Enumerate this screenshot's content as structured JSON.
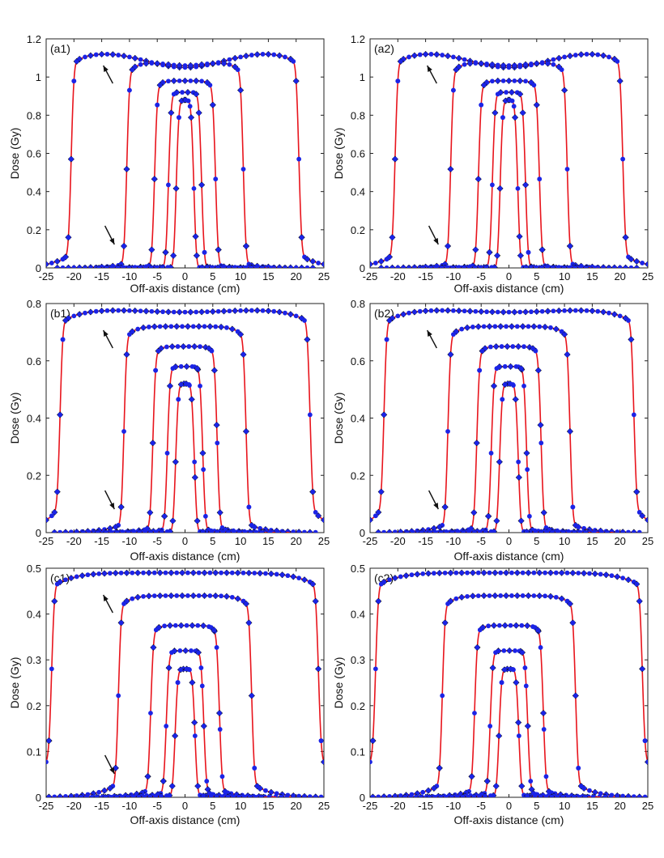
{
  "chart_data": [
    {
      "panel": "(a1)",
      "type": "line",
      "xlabel": "Off-axis distance (cm)",
      "ylabel": "Dose (Gy)",
      "xlim": [
        -25,
        25
      ],
      "ylim": [
        0,
        1.2
      ],
      "xticks": [
        "-25",
        "-20",
        "-15",
        "-10",
        "-5",
        "0",
        "5",
        "10",
        "15",
        "20",
        "25"
      ],
      "yticks": [
        "0",
        "0.2",
        "0.4",
        "0.6",
        "0.8",
        "1",
        "1.2"
      ],
      "grid": false,
      "markers_open_diamond": true,
      "arrows": true,
      "profiles": [
        {
          "half_width": 20.5,
          "max": 1.14,
          "dip": 0.09,
          "tail": 0.07
        },
        {
          "half_width": 10.5,
          "max": 1.08,
          "dip": 0.02,
          "tail": 0.02
        },
        {
          "half_width": 5.5,
          "max": 0.98,
          "dip": 0.0,
          "tail": 0.01
        },
        {
          "half_width": 3.0,
          "max": 0.92,
          "dip": 0.0,
          "tail": 0.005
        },
        {
          "half_width": 1.6,
          "max": 0.88,
          "dip": 0.0,
          "tail": 0.005
        }
      ]
    },
    {
      "panel": "(a2)",
      "type": "line",
      "xlabel": "Off-axis distance (cm)",
      "ylabel": "Dose (Gy)",
      "xlim": [
        -25,
        25
      ],
      "ylim": [
        0,
        1.2
      ],
      "xticks": [
        "-25",
        "-20",
        "-15",
        "-10",
        "-5",
        "0",
        "5",
        "10",
        "15",
        "20",
        "25"
      ],
      "yticks": [
        "0",
        "0.2",
        "0.4",
        "0.6",
        "0.8",
        "1",
        "1.2"
      ],
      "grid": false,
      "markers_open_diamond": true,
      "arrows": true,
      "profiles": [
        {
          "half_width": 20.5,
          "max": 1.14,
          "dip": 0.09,
          "tail": 0.07
        },
        {
          "half_width": 10.5,
          "max": 1.08,
          "dip": 0.02,
          "tail": 0.02
        },
        {
          "half_width": 5.5,
          "max": 0.98,
          "dip": 0.0,
          "tail": 0.01
        },
        {
          "half_width": 3.0,
          "max": 0.92,
          "dip": 0.0,
          "tail": 0.005
        },
        {
          "half_width": 1.6,
          "max": 0.88,
          "dip": 0.0,
          "tail": 0.005
        }
      ]
    },
    {
      "panel": "(b1)",
      "type": "line",
      "xlabel": "Off-axis distance (cm)",
      "ylabel": "Dose (Gy)",
      "xlim": [
        -25,
        25
      ],
      "ylim": [
        0,
        0.8
      ],
      "xticks": [
        "-25",
        "-20",
        "-15",
        "-10",
        "-5",
        "0",
        "5",
        "10",
        "15",
        "20",
        "25"
      ],
      "yticks": [
        "0",
        "0.2",
        "0.4",
        "0.6",
        "0.8"
      ],
      "grid": false,
      "markers_open_diamond": true,
      "arrows": true,
      "profiles": [
        {
          "half_width": 22.5,
          "max": 0.78,
          "dip": 0.01,
          "tail": 0.09
        },
        {
          "half_width": 11.0,
          "max": 0.72,
          "dip": 0.0,
          "tail": 0.03
        },
        {
          "half_width": 5.8,
          "max": 0.65,
          "dip": 0.0,
          "tail": 0.015
        },
        {
          "half_width": 3.2,
          "max": 0.58,
          "dip": 0.0,
          "tail": 0.01
        },
        {
          "half_width": 1.7,
          "max": 0.52,
          "dip": 0.0,
          "tail": 0.005
        }
      ]
    },
    {
      "panel": "(b2)",
      "type": "line",
      "xlabel": "Off-axis distance (cm)",
      "ylabel": "Dose (Gy)",
      "xlim": [
        -25,
        25
      ],
      "ylim": [
        0,
        0.8
      ],
      "xticks": [
        "-25",
        "-20",
        "-15",
        "-10",
        "-5",
        "0",
        "5",
        "10",
        "15",
        "20",
        "25"
      ],
      "yticks": [
        "0",
        "0.2",
        "0.4",
        "0.6",
        "0.8"
      ],
      "grid": false,
      "markers_open_diamond": true,
      "arrows": true,
      "profiles": [
        {
          "half_width": 22.5,
          "max": 0.78,
          "dip": 0.01,
          "tail": 0.09
        },
        {
          "half_width": 11.0,
          "max": 0.72,
          "dip": 0.0,
          "tail": 0.03
        },
        {
          "half_width": 5.8,
          "max": 0.65,
          "dip": 0.0,
          "tail": 0.015
        },
        {
          "half_width": 3.2,
          "max": 0.58,
          "dip": 0.0,
          "tail": 0.01
        },
        {
          "half_width": 1.7,
          "max": 0.52,
          "dip": 0.0,
          "tail": 0.005
        }
      ]
    },
    {
      "panel": "(c1)",
      "type": "line",
      "xlabel": "Off-axis distance (cm)",
      "ylabel": "Dose (Gy)",
      "xlim": [
        -25,
        25
      ],
      "ylim": [
        0,
        0.5
      ],
      "xticks": [
        "-25",
        "-20",
        "-15",
        "-10",
        "-5",
        "0",
        "5",
        "10",
        "15",
        "20",
        "25"
      ],
      "yticks": [
        "0",
        "0.1",
        "0.2",
        "0.3",
        "0.4",
        "0.5"
      ],
      "grid": false,
      "markers_open_diamond": true,
      "arrows": true,
      "profiles": [
        {
          "half_width": 24.0,
          "max": 0.49,
          "dip": 0.0,
          "tail": 0.1
        },
        {
          "half_width": 12.0,
          "max": 0.44,
          "dip": 0.0,
          "tail": 0.03
        },
        {
          "half_width": 6.2,
          "max": 0.375,
          "dip": 0.0,
          "tail": 0.015
        },
        {
          "half_width": 3.4,
          "max": 0.32,
          "dip": 0.0,
          "tail": 0.01
        },
        {
          "half_width": 1.8,
          "max": 0.28,
          "dip": 0.0,
          "tail": 0.005
        }
      ]
    },
    {
      "panel": "(c2)",
      "type": "line",
      "xlabel": "Off-axis distance (cm)",
      "ylabel": "Dose (Gy)",
      "xlim": [
        -25,
        25
      ],
      "ylim": [
        0,
        0.5
      ],
      "xticks": [
        "-25",
        "-20",
        "-15",
        "-10",
        "-5",
        "0",
        "5",
        "10",
        "15",
        "20",
        "25"
      ],
      "yticks": [
        "0",
        "0.1",
        "0.2",
        "0.3",
        "0.4",
        "0.5"
      ],
      "grid": false,
      "markers_open_diamond": true,
      "arrows": false,
      "profiles": [
        {
          "half_width": 24.0,
          "max": 0.49,
          "dip": 0.0,
          "tail": 0.1
        },
        {
          "half_width": 12.0,
          "max": 0.44,
          "dip": 0.0,
          "tail": 0.03
        },
        {
          "half_width": 6.2,
          "max": 0.375,
          "dip": 0.0,
          "tail": 0.015
        },
        {
          "half_width": 3.4,
          "max": 0.32,
          "dip": 0.0,
          "tail": 0.01
        },
        {
          "half_width": 1.8,
          "max": 0.28,
          "dip": 0.0,
          "tail": 0.005
        }
      ]
    }
  ],
  "colors": {
    "line": "#e8141c",
    "marker_blue": "#1b24e6",
    "marker_diamond": "#111111",
    "frame": "#222222"
  }
}
